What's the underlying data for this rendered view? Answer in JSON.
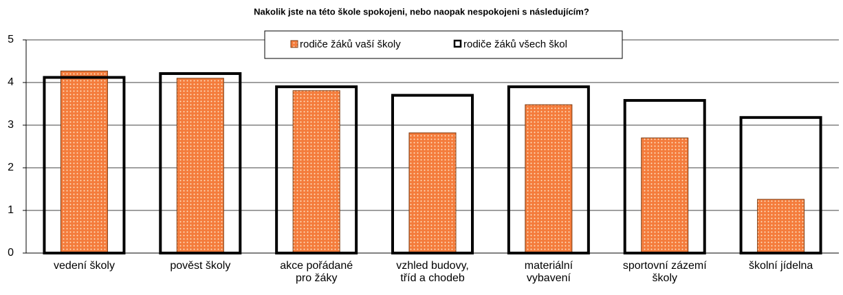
{
  "chart_data": {
    "type": "bar",
    "title": "Nakolik jste na této škole spokojeni, nebo naopak nespokojeni s následujícím?",
    "categories": [
      "vedení školy",
      "pověst školy",
      "akce pořádané\npro žáky",
      "vzhled budovy,\ntříd a chodeb",
      "materiální\nvybavení",
      "sportovní zázemí\nškoly",
      "školní jídelna"
    ],
    "series": [
      {
        "name": "rodiče žáků vaší školy",
        "color": "#f47c3c",
        "values": [
          4.27,
          4.1,
          3.81,
          2.82,
          3.48,
          2.7,
          1.26
        ]
      },
      {
        "name": "rodiče žáků všech škol",
        "color": "#000000",
        "values": [
          4.12,
          4.21,
          3.9,
          3.7,
          3.9,
          3.58,
          3.18
        ]
      }
    ],
    "ylim": [
      0,
      5
    ],
    "yticks": [
      0,
      1,
      2,
      3,
      4,
      5
    ],
    "grid": true,
    "legend": "top"
  }
}
